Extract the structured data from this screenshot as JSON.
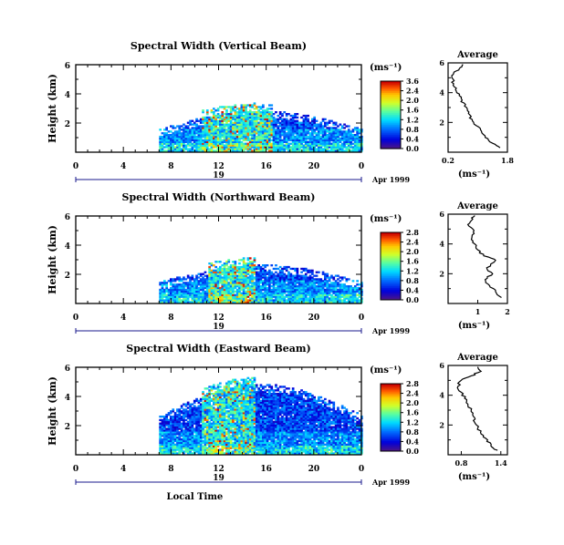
{
  "chart_data": [
    {
      "type": "heatmap",
      "title": "Spectral Width (Vertical Beam)",
      "ylabel": "Height (km)",
      "xlabel": "",
      "x_ticks": [
        "0",
        "4",
        "8",
        "12",
        "16",
        "20",
        "0"
      ],
      "y_ticks": [
        "2",
        "4",
        "6"
      ],
      "xlim": [
        0,
        24
      ],
      "ylim": [
        0,
        6
      ],
      "date_label": "19",
      "date_suffix": "Apr 1999",
      "colorbar": {
        "label": "(ms⁻¹)",
        "ticks": [
          "3.6",
          "2.4",
          "2.0",
          "1.6",
          "1.2",
          "0.8",
          "0.4",
          "0.0"
        ]
      },
      "data_extent": {
        "hours": [
          7,
          24
        ],
        "height_top_km": 2.8,
        "peak_hours": [
          10.5,
          16.5
        ]
      },
      "average_profile": {
        "title": "Average",
        "xlabel": "(ms⁻¹)",
        "x_ticks": [
          "0.2",
          "1.8"
        ],
        "y_ticks": [
          "2",
          "4",
          "6"
        ],
        "xlim": [
          0.2,
          1.8
        ],
        "points": [
          [
            1.6,
            0.3
          ],
          [
            1.4,
            0.6
          ],
          [
            1.2,
            1.0
          ],
          [
            1.1,
            1.4
          ],
          [
            0.95,
            1.8
          ],
          [
            0.85,
            2.2
          ],
          [
            0.75,
            2.6
          ],
          [
            0.7,
            3.0
          ],
          [
            0.55,
            3.4
          ],
          [
            0.5,
            3.8
          ],
          [
            0.4,
            4.2
          ],
          [
            0.35,
            4.6
          ],
          [
            0.3,
            5.0
          ],
          [
            0.35,
            5.3
          ],
          [
            0.5,
            5.6
          ],
          [
            0.6,
            5.9
          ]
        ]
      }
    },
    {
      "type": "heatmap",
      "title": "Spectral Width (Northward Beam)",
      "ylabel": "Height (km)",
      "xlabel": "",
      "x_ticks": [
        "0",
        "4",
        "8",
        "12",
        "16",
        "20",
        "0"
      ],
      "y_ticks": [
        "2",
        "4",
        "6"
      ],
      "xlim": [
        0,
        24
      ],
      "ylim": [
        0,
        6
      ],
      "date_label": "19",
      "date_suffix": "Apr 1999",
      "colorbar": {
        "label": "(ms⁻¹)",
        "ticks": [
          "2.8",
          "2.4",
          "2.0",
          "1.6",
          "1.2",
          "0.8",
          "0.4",
          "0.0"
        ]
      },
      "data_extent": {
        "hours": [
          7,
          24
        ],
        "height_top_km": 2.6,
        "peak_hours": [
          11,
          15
        ]
      },
      "average_profile": {
        "title": "Average",
        "xlabel": "(ms⁻¹)",
        "x_ticks": [
          "1",
          "2"
        ],
        "y_ticks": [
          "2",
          "4",
          "6"
        ],
        "xlim": [
          0,
          2
        ],
        "points": [
          [
            1.8,
            0.4
          ],
          [
            1.6,
            0.8
          ],
          [
            1.4,
            1.2
          ],
          [
            1.25,
            1.6
          ],
          [
            1.5,
            2.0
          ],
          [
            1.3,
            2.4
          ],
          [
            1.6,
            2.9
          ],
          [
            1.2,
            3.2
          ],
          [
            1.0,
            3.6
          ],
          [
            0.9,
            4.0
          ],
          [
            0.8,
            4.4
          ],
          [
            0.85,
            4.8
          ],
          [
            0.7,
            5.2
          ],
          [
            0.8,
            5.6
          ],
          [
            0.9,
            5.9
          ]
        ]
      }
    },
    {
      "type": "heatmap",
      "title": "Spectral Width (Eastward Beam)",
      "ylabel": "Height (km)",
      "xlabel": "Local Time",
      "x_ticks": [
        "0",
        "4",
        "8",
        "12",
        "16",
        "20",
        "0"
      ],
      "y_ticks": [
        "2",
        "4",
        "6"
      ],
      "xlim": [
        0,
        24
      ],
      "ylim": [
        0,
        6
      ],
      "date_label": "19",
      "date_suffix": "Apr 1999",
      "colorbar": {
        "label": "(ms⁻¹)",
        "ticks": [
          "2.8",
          "2.4",
          "2.0",
          "1.6",
          "1.2",
          "0.8",
          "0.4",
          "0.0"
        ]
      },
      "data_extent": {
        "hours": [
          7,
          24
        ],
        "height_top_km": 4.8,
        "peak_hours": [
          10.5,
          15
        ]
      },
      "average_profile": {
        "title": "Average",
        "xlabel": "(ms⁻¹)",
        "x_ticks": [
          "0.8",
          "1.4"
        ],
        "y_ticks": [
          "2",
          "4",
          "6"
        ],
        "xlim": [
          0.6,
          1.5
        ],
        "points": [
          [
            1.35,
            0.3
          ],
          [
            1.25,
            0.6
          ],
          [
            1.2,
            1.0
          ],
          [
            1.1,
            1.4
          ],
          [
            1.05,
            1.8
          ],
          [
            1.0,
            2.2
          ],
          [
            0.98,
            2.6
          ],
          [
            0.95,
            3.0
          ],
          [
            0.9,
            3.4
          ],
          [
            0.85,
            3.8
          ],
          [
            0.8,
            4.2
          ],
          [
            0.75,
            4.6
          ],
          [
            0.8,
            5.0
          ],
          [
            0.95,
            5.3
          ],
          [
            1.1,
            5.6
          ],
          [
            1.05,
            5.9
          ]
        ]
      }
    }
  ]
}
